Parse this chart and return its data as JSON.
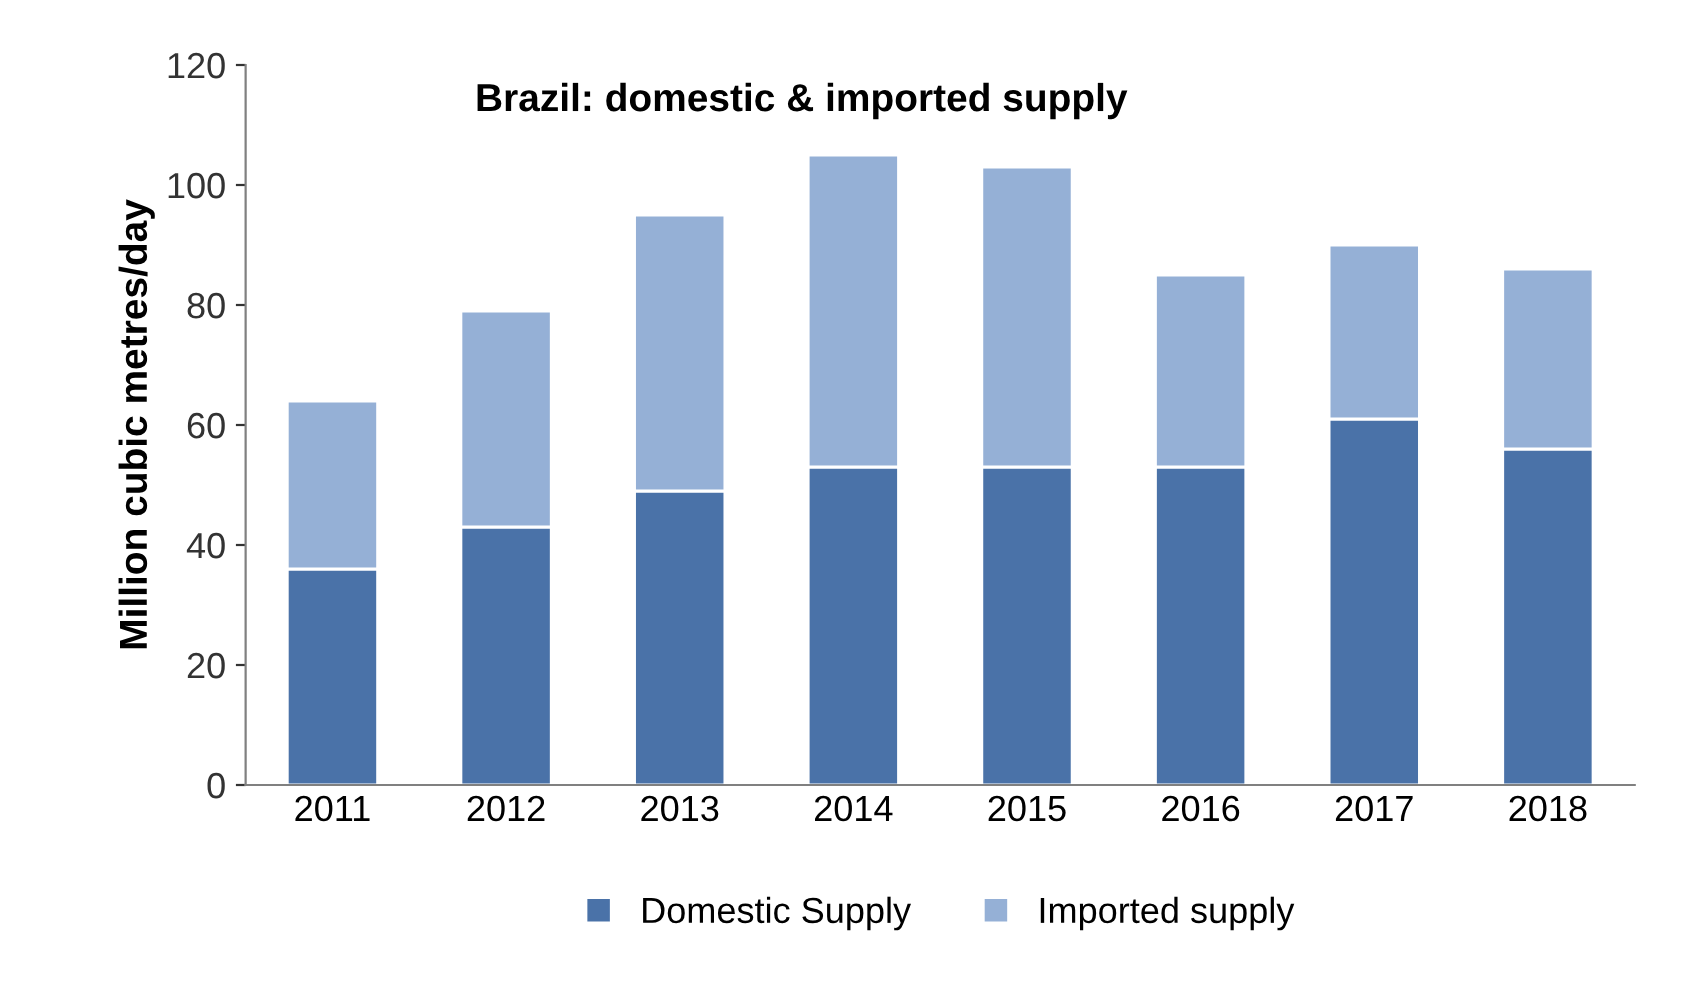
{
  "chart_data": {
    "type": "bar",
    "stacked": true,
    "title": "Brazil: domestic & imported supply",
    "ylabel": "Million cubic metres/day",
    "categories": [
      "2011",
      "2012",
      "2013",
      "2014",
      "2015",
      "2016",
      "2017",
      "2018"
    ],
    "series": [
      {
        "name": "Domestic Supply",
        "color": "#4a72a8",
        "values": [
          36,
          43,
          49,
          53,
          53,
          53,
          61,
          56
        ]
      },
      {
        "name": "Imported supply",
        "color": "#95b0d6",
        "values": [
          28,
          36,
          46,
          52,
          50,
          32,
          29,
          30
        ]
      }
    ],
    "ylim": [
      0,
      120
    ],
    "yticks": [
      0,
      20,
      40,
      60,
      80,
      100,
      120
    ],
    "grid": false,
    "legend": "bottom"
  }
}
